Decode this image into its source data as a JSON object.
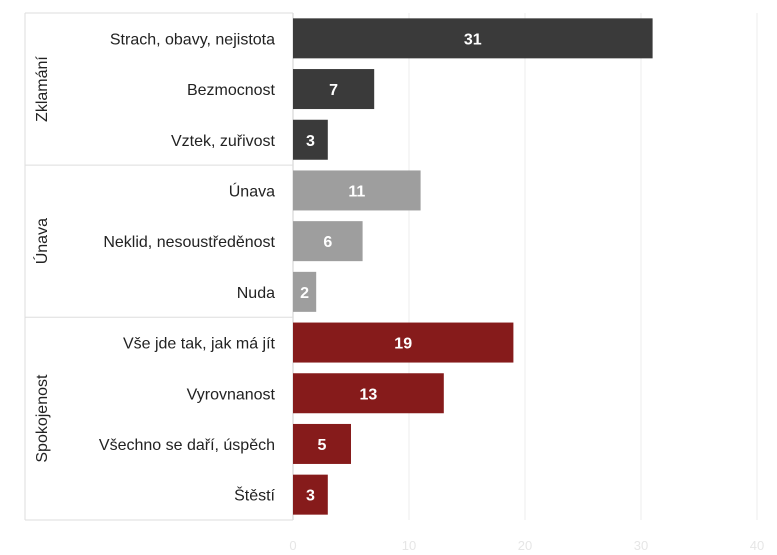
{
  "chart_data": {
    "type": "bar",
    "orientation": "horizontal",
    "xlim": [
      0,
      40
    ],
    "x_ticks": [
      0,
      10,
      20,
      30,
      40
    ],
    "grid": true,
    "data_labels": true,
    "groups": [
      {
        "name": "Zklamání",
        "color": "#3a3a3a",
        "items": [
          {
            "label": "Strach, obavy, nejistota",
            "value": 31
          },
          {
            "label": "Bezmocnost",
            "value": 7
          },
          {
            "label": "Vztek, zuřivost",
            "value": 3
          }
        ]
      },
      {
        "name": "Únava",
        "color": "#9e9e9e",
        "items": [
          {
            "label": "Únava",
            "value": 11
          },
          {
            "label": "Neklid, nesoustředěnost",
            "value": 6
          },
          {
            "label": "Nuda",
            "value": 2
          }
        ]
      },
      {
        "name": "Spokojenost",
        "color": "#861b1b",
        "items": [
          {
            "label": "Vše jde tak, jak má jít",
            "value": 19
          },
          {
            "label": "Vyrovnanost",
            "value": 13
          },
          {
            "label": "Všechno se daří, úspěch",
            "value": 5
          },
          {
            "label": "Štěstí",
            "value": 3
          }
        ]
      }
    ]
  }
}
